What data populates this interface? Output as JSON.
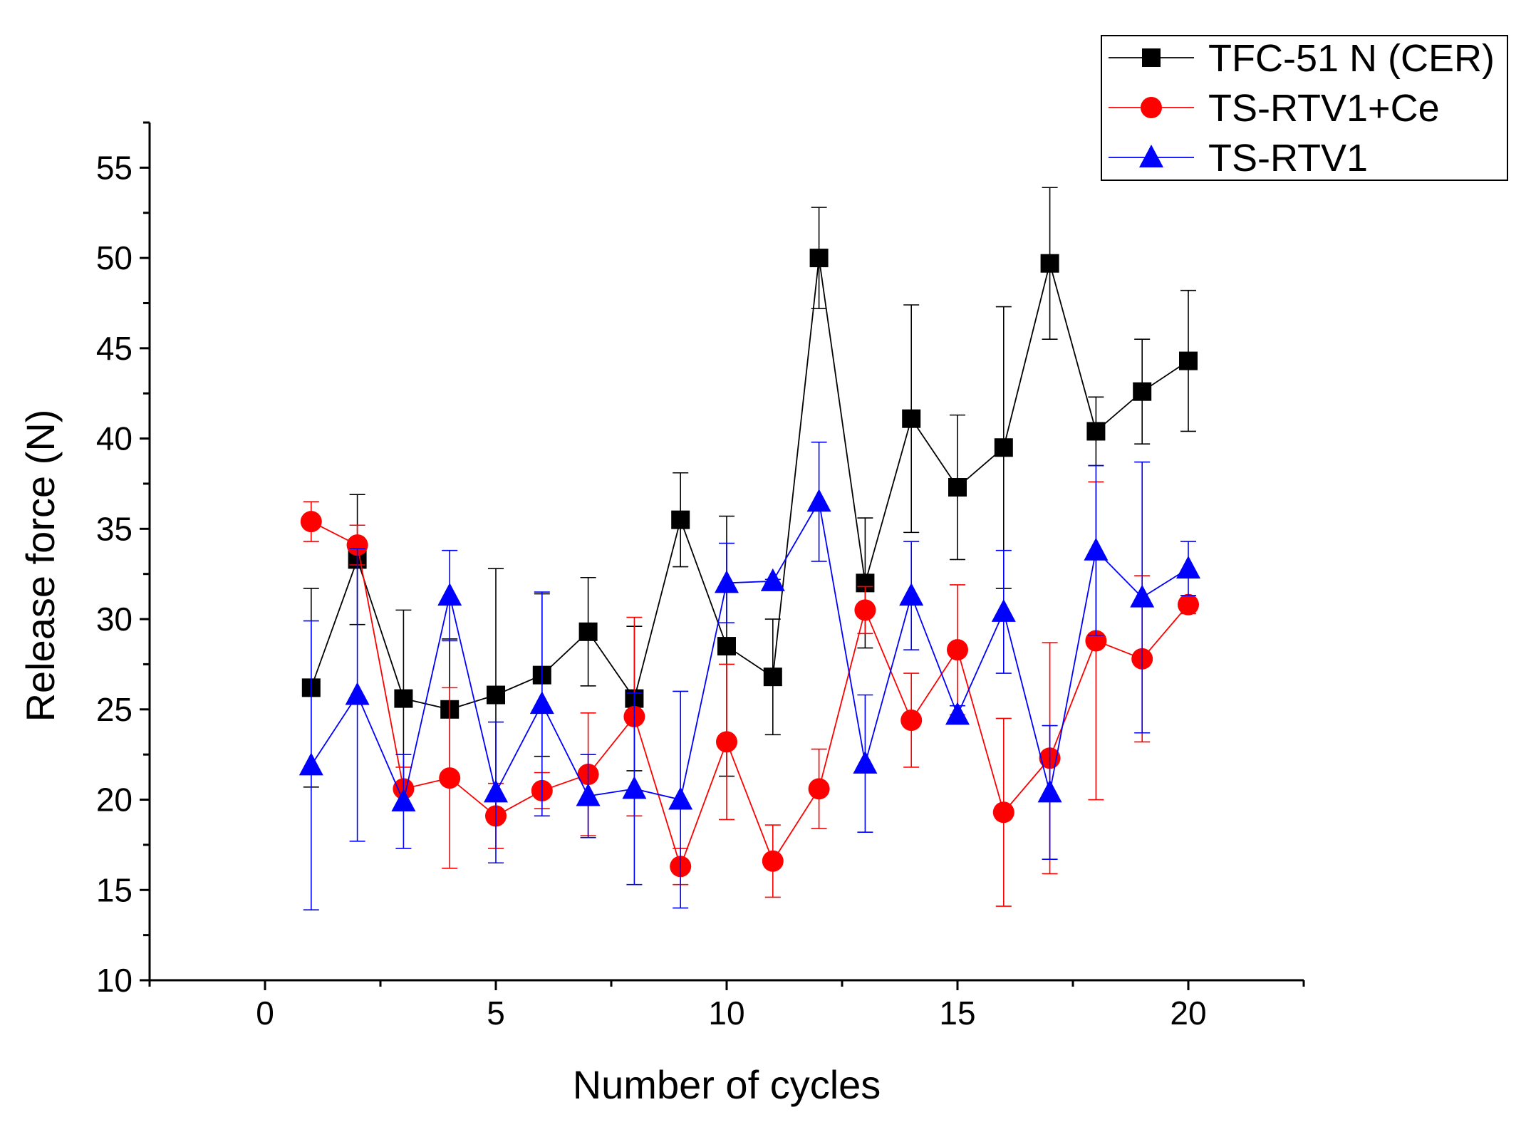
{
  "chart_data": {
    "type": "line",
    "title": "",
    "xlabel": "Number of cycles",
    "ylabel": "Release force (N)",
    "xlim": [
      -2.5,
      22.5
    ],
    "ylim": [
      10,
      57.5
    ],
    "xticks": [
      0,
      5,
      10,
      15,
      20
    ],
    "xtick_labels": [
      "0",
      "5",
      "10",
      "15",
      "20"
    ],
    "yticks": [
      10,
      15,
      20,
      25,
      30,
      35,
      40,
      45,
      50,
      55
    ],
    "ytick_labels": [
      "10",
      "15",
      "20",
      "25",
      "30",
      "35",
      "40",
      "45",
      "50",
      "55"
    ],
    "grid": false,
    "legend_position": "top-right",
    "x": [
      1,
      2,
      3,
      4,
      5,
      6,
      7,
      8,
      9,
      10,
      11,
      12,
      13,
      14,
      15,
      16,
      17,
      18,
      19,
      20
    ],
    "series": [
      {
        "name": "TFC-51 N (CER)",
        "color": "#000000",
        "marker": "square",
        "values": [
          26.2,
          33.3,
          25.6,
          25.0,
          25.8,
          26.9,
          29.3,
          25.6,
          35.5,
          28.5,
          26.8,
          50.0,
          32.0,
          41.1,
          37.3,
          39.5,
          49.7,
          40.4,
          42.6,
          44.3
        ],
        "errors": [
          5.5,
          3.6,
          4.9,
          3.9,
          7.0,
          4.5,
          3.0,
          4.0,
          2.6,
          7.2,
          3.2,
          2.8,
          3.6,
          6.3,
          4.0,
          7.8,
          4.2,
          1.9,
          2.9,
          3.9
        ]
      },
      {
        "name": "TS-RTV1+Ce",
        "color": "#ff0000",
        "marker": "circle",
        "values": [
          35.4,
          34.1,
          20.6,
          21.2,
          19.1,
          20.5,
          21.4,
          24.6,
          16.3,
          23.2,
          16.6,
          20.6,
          30.5,
          24.4,
          28.3,
          19.3,
          22.3,
          28.8,
          27.8,
          30.8
        ],
        "errors": [
          1.1,
          1.1,
          1.2,
          5.0,
          1.8,
          1.0,
          3.4,
          5.5,
          1.0,
          4.3,
          2.0,
          2.2,
          1.3,
          2.6,
          3.6,
          5.2,
          6.4,
          8.8,
          4.6,
          0.5
        ]
      },
      {
        "name": "TS-RTV1",
        "color": "#0000ff",
        "marker": "triangle",
        "values": [
          21.9,
          25.8,
          19.9,
          31.3,
          20.4,
          25.3,
          20.2,
          20.6,
          20.0,
          32.0,
          32.1,
          36.5,
          22.0,
          31.3,
          24.7,
          30.4,
          20.4,
          33.8,
          31.2,
          32.8
        ],
        "errors": [
          8.0,
          8.1,
          2.6,
          2.5,
          3.9,
          6.2,
          2.3,
          5.3,
          6.0,
          2.2,
          0.1,
          3.3,
          3.8,
          3.0,
          0.5,
          3.4,
          3.7,
          4.7,
          7.5,
          1.5
        ]
      }
    ]
  }
}
